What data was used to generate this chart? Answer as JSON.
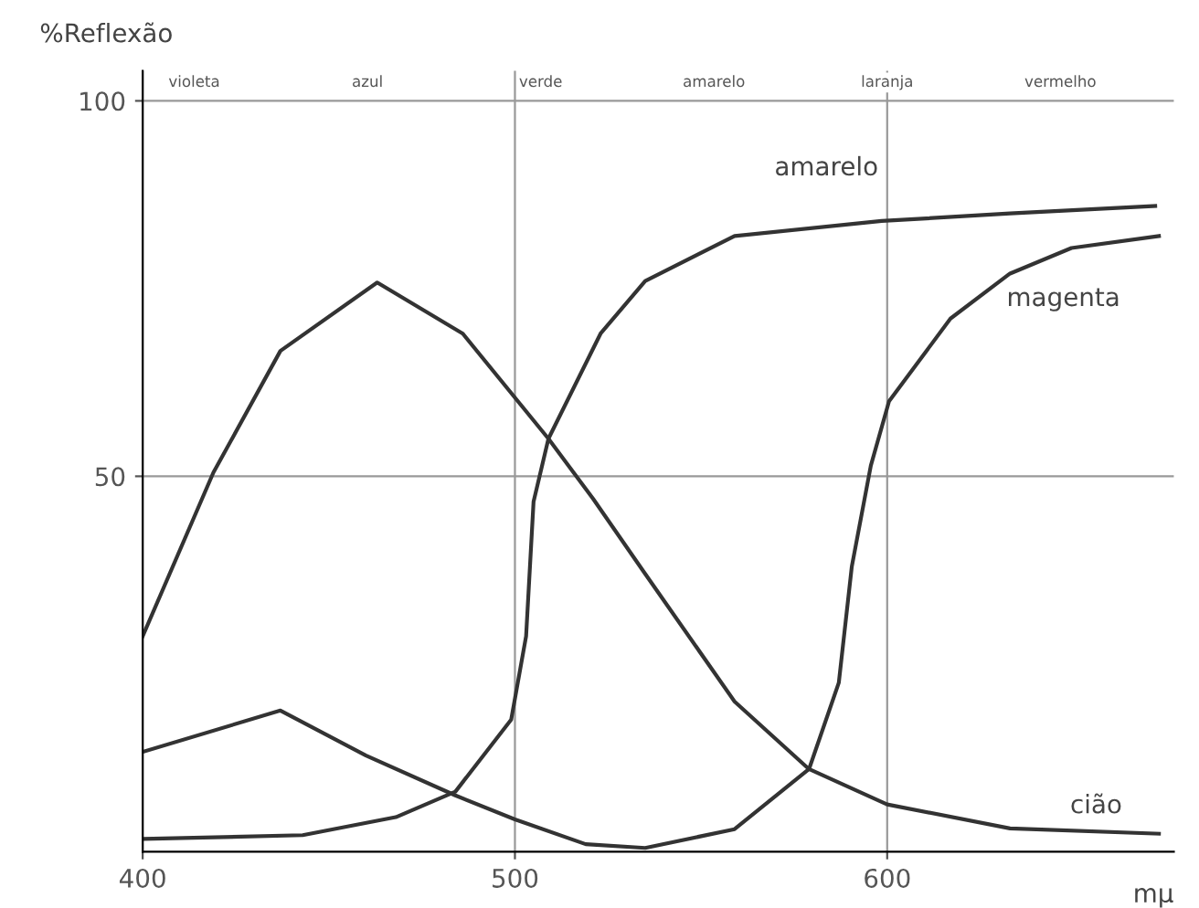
{
  "chart_data": {
    "type": "line",
    "ylabel": "%Reflexão",
    "xlabel": "mμ",
    "xlim": [
      400,
      677
    ],
    "ylim": [
      0,
      104
    ],
    "xticks": [
      400,
      500,
      600
    ],
    "yticks": [
      50,
      100
    ],
    "grid": true,
    "legend": false,
    "marker": "none",
    "line_style": "solid",
    "annotations": [
      "violeta",
      "azul",
      "verde",
      "amarelo",
      "laranja",
      "vermelho"
    ],
    "series": [
      {
        "name": "amarelo",
        "color": "#333333",
        "x": [
          400,
          443,
          468,
          484,
          499,
          503,
          505,
          509,
          523,
          535,
          559,
          598.5,
          633,
          672
        ],
        "values": [
          1.7,
          2.2,
          4.6,
          8,
          17.6,
          28.7,
          46.6,
          55,
          69,
          76,
          82,
          84,
          85,
          86
        ]
      },
      {
        "name": "magenta",
        "color": "#333333",
        "x": [
          400,
          437,
          460,
          484,
          500,
          519,
          535,
          559,
          579,
          587,
          590.5,
          595.6,
          600.5,
          617,
          633,
          649.5,
          673
        ],
        "values": [
          13.3,
          18.8,
          12.8,
          7.5,
          4.3,
          1,
          0.5,
          3,
          11,
          22.5,
          38,
          51.4,
          60,
          71,
          77,
          80.4,
          82
        ]
      },
      {
        "name": "cião",
        "color": "#333333",
        "x": [
          400,
          419,
          437,
          463,
          486,
          509,
          521,
          535,
          559,
          579,
          600,
          633,
          673
        ],
        "values": [
          28.7,
          50.5,
          66.7,
          75.8,
          69,
          55,
          47,
          37,
          20,
          11,
          6.3,
          3.1,
          2.4
        ]
      }
    ]
  }
}
